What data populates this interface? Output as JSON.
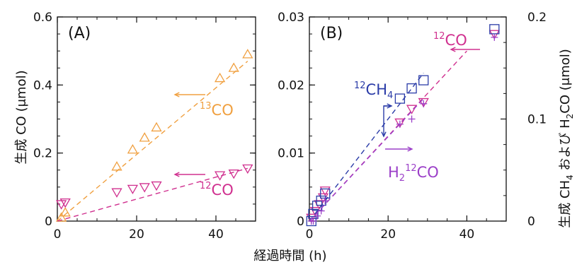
{
  "chart_data": [
    {
      "panel": "(A)",
      "type": "scatter",
      "ylabel": "生成 CO (μmol)",
      "xlim": [
        0,
        50
      ],
      "ylim": [
        0,
        0.6
      ],
      "x_ticks": [
        "0",
        "20",
        "40"
      ],
      "y_ticks": [
        "0",
        "0.2",
        "0.4",
        "0.6"
      ],
      "series": [
        {
          "name": "13CO",
          "label_sup": "13",
          "label_base": "CO",
          "color": "#F0A040",
          "marker": "triangle-up",
          "axis": "left",
          "points": [
            [
              1.0,
              0.01
            ],
            [
              2.0,
              0.025
            ],
            [
              15.0,
              0.16
            ],
            [
              19.0,
              0.21
            ],
            [
              22.0,
              0.245
            ],
            [
              25.0,
              0.275
            ],
            [
              41.0,
              0.42
            ],
            [
              44.5,
              0.45
            ],
            [
              48.0,
              0.49
            ]
          ],
          "fit": [
            [
              0,
              0
            ],
            [
              48,
              0.47
            ]
          ]
        },
        {
          "name": "12CO",
          "label_sup": "12",
          "label_base": "CO",
          "color": "#D0308F",
          "marker": "triangle-down",
          "axis": "left",
          "points": [
            [
              1.0,
              0.05
            ],
            [
              2.0,
              0.055
            ],
            [
              15.0,
              0.085
            ],
            [
              19.0,
              0.095
            ],
            [
              22.0,
              0.1
            ],
            [
              25.0,
              0.105
            ],
            [
              41.0,
              0.135
            ],
            [
              44.5,
              0.14
            ],
            [
              48.0,
              0.155
            ]
          ],
          "fit": [
            [
              0,
              0
            ],
            [
              48,
              0.155
            ]
          ]
        }
      ]
    },
    {
      "panel": "(B)",
      "type": "scatter",
      "ylabel_right": "生成 CH4 および H2CO (μmol)",
      "xlim": [
        0,
        50
      ],
      "ylim": [
        0,
        0.03
      ],
      "y2lim": [
        0,
        0.2
      ],
      "x_ticks": [
        "0",
        "20",
        "40"
      ],
      "y_ticks": [
        "0",
        "0.01",
        "0.02",
        "0.03"
      ],
      "y2_ticks": [
        "0",
        "0.1",
        "0.2"
      ],
      "series": [
        {
          "name": "12CO",
          "label_sup": "12",
          "label_base": "CO",
          "color": "#D0308F",
          "marker": "triangle-down",
          "axis": "left",
          "points": [
            [
              0.5,
              0.0005
            ],
            [
              1.5,
              0.0015
            ],
            [
              2.5,
              0.0025
            ],
            [
              3.5,
              0.0035
            ],
            [
              4.0,
              0.0045
            ],
            [
              23.0,
              0.0145
            ],
            [
              26.0,
              0.0165
            ],
            [
              29.0,
              0.0175
            ],
            [
              47.0,
              0.0275
            ]
          ],
          "fit": [
            [
              0,
              0
            ],
            [
              40,
              0.025
            ]
          ]
        },
        {
          "name": "12CH4",
          "label_sup": "12",
          "label_base": "CH",
          "label_sub": "4",
          "color": "#2B3CA8",
          "marker": "square",
          "axis": "right",
          "points": [
            [
              0.5,
              0.0
            ],
            [
              1.0,
              0.007
            ],
            [
              2.0,
              0.015
            ],
            [
              3.0,
              0.02
            ],
            [
              4.0,
              0.027
            ],
            [
              23.0,
              0.12
            ],
            [
              26.0,
              0.13
            ],
            [
              29.0,
              0.138
            ],
            [
              47.0,
              0.188
            ]
          ],
          "fit": [
            [
              0,
              0
            ],
            [
              29,
              0.145
            ]
          ]
        },
        {
          "name": "H212CO",
          "label_prefix": "H",
          "label_prefix_sub": "2",
          "label_sup": "12",
          "label_base": "CO",
          "color": "#9B3FC8",
          "marker": "plus",
          "axis": "right",
          "points": [
            [
              0.5,
              0.0
            ],
            [
              1.0,
              0.0
            ],
            [
              2.0,
              0.005
            ],
            [
              3.0,
              0.01
            ],
            [
              4.0,
              0.02
            ],
            [
              23.0,
              0.095
            ],
            [
              26.0,
              0.1
            ],
            [
              29.0,
              0.115
            ],
            [
              47.0,
              0.18
            ]
          ],
          "fit": [
            [
              0,
              0
            ],
            [
              29,
              0.12
            ]
          ]
        }
      ]
    }
  ],
  "shared_xlabel": "経過時間 (h)"
}
